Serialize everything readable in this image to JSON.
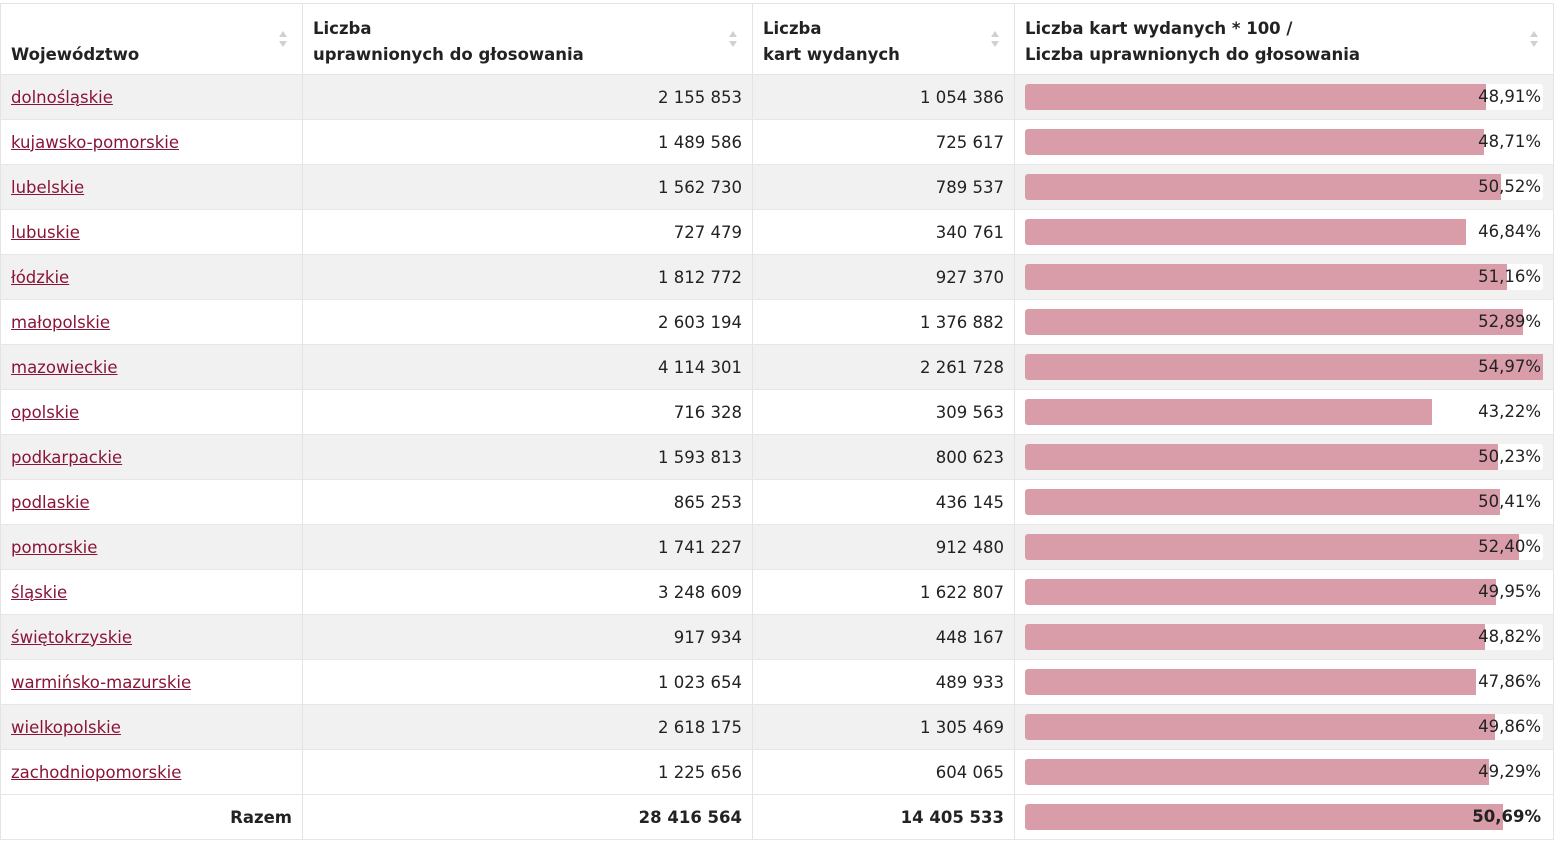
{
  "table": {
    "headers": {
      "region": "Województwo",
      "eligible_line1": "Liczba",
      "eligible_line2": "uprawnionych do głosowania",
      "cards_line1": "Liczba",
      "cards_line2": "kart wydanych",
      "ratio_line1": "Liczba kart wydanych * 100 /",
      "ratio_line2": "Liczba uprawnionych do głosowania"
    },
    "rows": [
      {
        "name": "dolnośląskie",
        "eligible": "2 155 853",
        "cards": "1 054 386",
        "pct_label": "48,91%",
        "pct": 48.91
      },
      {
        "name": "kujawsko-pomorskie",
        "eligible": "1 489 586",
        "cards": "725 617",
        "pct_label": "48,71%",
        "pct": 48.71
      },
      {
        "name": "lubelskie",
        "eligible": "1 562 730",
        "cards": "789 537",
        "pct_label": "50,52%",
        "pct": 50.52
      },
      {
        "name": "lubuskie",
        "eligible": "727 479",
        "cards": "340 761",
        "pct_label": "46,84%",
        "pct": 46.84
      },
      {
        "name": "łódzkie",
        "eligible": "1 812 772",
        "cards": "927 370",
        "pct_label": "51,16%",
        "pct": 51.16
      },
      {
        "name": "małopolskie",
        "eligible": "2 603 194",
        "cards": "1 376 882",
        "pct_label": "52,89%",
        "pct": 52.89
      },
      {
        "name": "mazowieckie",
        "eligible": "4 114 301",
        "cards": "2 261 728",
        "pct_label": "54,97%",
        "pct": 54.97
      },
      {
        "name": "opolskie",
        "eligible": "716 328",
        "cards": "309 563",
        "pct_label": "43,22%",
        "pct": 43.22
      },
      {
        "name": "podkarpackie",
        "eligible": "1 593 813",
        "cards": "800 623",
        "pct_label": "50,23%",
        "pct": 50.23
      },
      {
        "name": "podlaskie",
        "eligible": "865 253",
        "cards": "436 145",
        "pct_label": "50,41%",
        "pct": 50.41
      },
      {
        "name": "pomorskie",
        "eligible": "1 741 227",
        "cards": "912 480",
        "pct_label": "52,40%",
        "pct": 52.4
      },
      {
        "name": "śląskie",
        "eligible": "3 248 609",
        "cards": "1 622 807",
        "pct_label": "49,95%",
        "pct": 49.95
      },
      {
        "name": "świętokrzyskie",
        "eligible": "917 934",
        "cards": "448 167",
        "pct_label": "48,82%",
        "pct": 48.82
      },
      {
        "name": "warmińsko-mazurskie",
        "eligible": "1 023 654",
        "cards": "489 933",
        "pct_label": "47,86%",
        "pct": 47.86
      },
      {
        "name": "wielkopolskie",
        "eligible": "2 618 175",
        "cards": "1 305 469",
        "pct_label": "49,86%",
        "pct": 49.86
      },
      {
        "name": "zachodniopomorskie",
        "eligible": "1 225 656",
        "cards": "604 065",
        "pct_label": "49,29%",
        "pct": 49.29
      }
    ],
    "total": {
      "label": "Razem",
      "eligible": "28 416 564",
      "cards": "14 405 533",
      "pct_label": "50,69%",
      "pct": 50.69
    },
    "bar_max_pct": 54.97,
    "colors": {
      "bar": "#d99daa",
      "link": "#8a1437",
      "stripe": "#f1f1f1"
    },
    "sort_icon": "sort-arrows-icon"
  }
}
